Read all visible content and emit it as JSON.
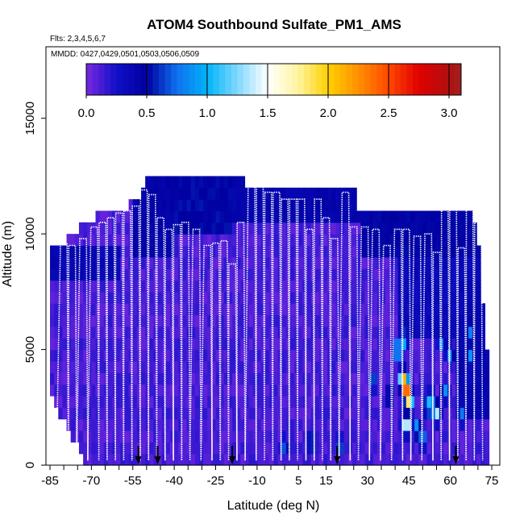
{
  "chart_data": {
    "type": "heatmap",
    "title": "ATOM4 Southbound Sulfate_PM1_AMS",
    "flights_label": "Flts: 2,3,4,5,6,7",
    "dates_label": "MMDD: 0427,0429,0501,0503,0506,0509",
    "xlabel": "Latitude (deg N)",
    "ylabel": "Altitude (m)",
    "x_ticks": [
      "-85",
      "-70",
      "-55",
      "-40",
      "-25",
      "-10",
      "5",
      "15",
      "30",
      "45",
      "60",
      "75"
    ],
    "y_ticks": [
      "0",
      "5000",
      "10000",
      "15000"
    ],
    "xlim": [
      -85,
      75
    ],
    "ylim": [
      0,
      17500
    ],
    "colorbar": {
      "ticks": [
        "0.0",
        "0.5",
        "1.0",
        "1.5",
        "2.0",
        "2.5",
        "3.0"
      ],
      "range": [
        0,
        3.1
      ],
      "stops": [
        {
          "v": 0.0,
          "color": "#7a28e0"
        },
        {
          "v": 0.25,
          "color": "#1010c8"
        },
        {
          "v": 0.5,
          "color": "#0000a0"
        },
        {
          "v": 0.75,
          "color": "#1070f0"
        },
        {
          "v": 1.0,
          "color": "#00b4f8"
        },
        {
          "v": 1.25,
          "color": "#80d8ff"
        },
        {
          "v": 1.5,
          "color": "#ffffff"
        },
        {
          "v": 1.75,
          "color": "#fff4a0"
        },
        {
          "v": 2.0,
          "color": "#ffd000"
        },
        {
          "v": 2.25,
          "color": "#ff9000"
        },
        {
          "v": 2.5,
          "color": "#ff4800"
        },
        {
          "v": 2.75,
          "color": "#e00000"
        },
        {
          "v": 3.0,
          "color": "#b01010"
        },
        {
          "v": 3.1,
          "color": "#a02020"
        }
      ]
    },
    "top_profile": [
      {
        "lat": -85,
        "alt": 9300
      },
      {
        "lat": -80,
        "alt": 9600
      },
      {
        "lat": -75,
        "alt": 10200
      },
      {
        "lat": -70,
        "alt": 10700
      },
      {
        "lat": -60,
        "alt": 11100
      },
      {
        "lat": -52,
        "alt": 11400
      },
      {
        "lat": -50,
        "alt": 12400
      },
      {
        "lat": -20,
        "alt": 12400
      },
      {
        "lat": -10,
        "alt": 12100
      },
      {
        "lat": 5,
        "alt": 12100
      },
      {
        "lat": 25,
        "alt": 11900
      },
      {
        "lat": 27,
        "alt": 11100
      },
      {
        "lat": 62,
        "alt": 11100
      },
      {
        "lat": 68,
        "alt": 11000
      },
      {
        "lat": 70,
        "alt": 10000
      },
      {
        "lat": 73,
        "alt": 5200
      }
    ],
    "bottom_profile": [
      {
        "lat": -85,
        "alt": 3000
      },
      {
        "lat": -80,
        "alt": 1900
      },
      {
        "lat": -75,
        "alt": 800
      },
      {
        "lat": -72,
        "alt": 0
      },
      {
        "lat": 73,
        "alt": 0
      }
    ],
    "background_value": 0.12,
    "deep_bands": [
      {
        "lat0": -85,
        "lat1": -60,
        "alt0": 7600,
        "alt1": 9400,
        "v": 0.38
      },
      {
        "lat0": -55,
        "lat1": -40,
        "alt0": 9000,
        "alt1": 12400,
        "v": 0.45
      },
      {
        "lat0": -40,
        "lat1": -20,
        "alt0": 10000,
        "alt1": 12400,
        "v": 0.5
      },
      {
        "lat0": -20,
        "lat1": 27,
        "alt0": 10500,
        "alt1": 12400,
        "v": 0.42
      },
      {
        "lat0": 27,
        "lat1": 70,
        "alt0": 9000,
        "alt1": 11100,
        "v": 0.48
      },
      {
        "lat0": 40,
        "lat1": 70,
        "alt0": 5500,
        "alt1": 9000,
        "v": 0.35
      },
      {
        "lat0": 62,
        "lat1": 73,
        "alt0": 2000,
        "alt1": 8000,
        "v": 0.4
      }
    ],
    "hotspots": [
      {
        "lat": 44,
        "alt": 3300,
        "v": 3.0
      },
      {
        "lat": 43,
        "alt": 3700,
        "v": 2.2
      },
      {
        "lat": 45,
        "alt": 2800,
        "v": 1.9
      },
      {
        "lat": 44,
        "alt": 1800,
        "v": 1.7
      },
      {
        "lat": 41,
        "alt": 5000,
        "v": 1.3
      },
      {
        "lat": 43,
        "alt": 5400,
        "v": 1.1
      },
      {
        "lat": 55,
        "alt": 2300,
        "v": 1.4
      },
      {
        "lat": 53,
        "alt": 2800,
        "v": 1.0
      },
      {
        "lat": 57,
        "alt": 5400,
        "v": 0.9
      },
      {
        "lat": 60,
        "alt": 4800,
        "v": 0.9
      },
      {
        "lat": 67,
        "alt": 4700,
        "v": 0.9
      },
      {
        "lat": 67,
        "alt": 5900,
        "v": 0.9
      },
      {
        "lat": 32,
        "alt": 3700,
        "v": 0.8
      },
      {
        "lat": 10,
        "alt": 1000,
        "v": 0.8
      },
      {
        "lat": 0,
        "alt": 800,
        "v": 0.7
      },
      {
        "lat": 20,
        "alt": 800,
        "v": 0.8
      },
      {
        "lat": 50,
        "alt": 1200,
        "v": 0.9
      },
      {
        "lat": 64,
        "alt": 2200,
        "v": 0.8
      },
      {
        "lat": 38,
        "alt": 3000,
        "v": 0.7
      },
      {
        "lat": 48,
        "alt": 1600,
        "v": 1.0
      },
      {
        "lat": 52,
        "alt": 2600,
        "v": 1.2
      },
      {
        "lat": 58,
        "alt": 3200,
        "v": 0.9
      }
    ],
    "profile_latitudes": [
      -80,
      -77,
      -73,
      -69,
      -66,
      -63,
      -60,
      -57,
      -54,
      -51,
      -48,
      -45,
      -42,
      -39,
      -36,
      -32,
      -28,
      -25,
      -22,
      -19,
      -16,
      -12,
      -9,
      -6,
      -3,
      0,
      3,
      6,
      9,
      12,
      15,
      18,
      22,
      25,
      29,
      33,
      37,
      41,
      44,
      48,
      52,
      55,
      58,
      61,
      64,
      67,
      70
    ],
    "profile_tops": [
      9600,
      9500,
      9800,
      10300,
      10500,
      10700,
      10900,
      11000,
      11200,
      11900,
      11700,
      10700,
      10200,
      10400,
      10500,
      10200,
      9500,
      9600,
      9700,
      8700,
      10500,
      12300,
      12300,
      11800,
      11800,
      11500,
      11500,
      11500,
      10200,
      11500,
      10700,
      9800,
      11800,
      10300,
      10300,
      10200,
      9500,
      10200,
      10200,
      9900,
      10000,
      9200,
      11100,
      11100,
      9400,
      11100,
      10500
    ],
    "flight_start_latitudes": [
      -53,
      -46,
      -19,
      19,
      62
    ]
  }
}
